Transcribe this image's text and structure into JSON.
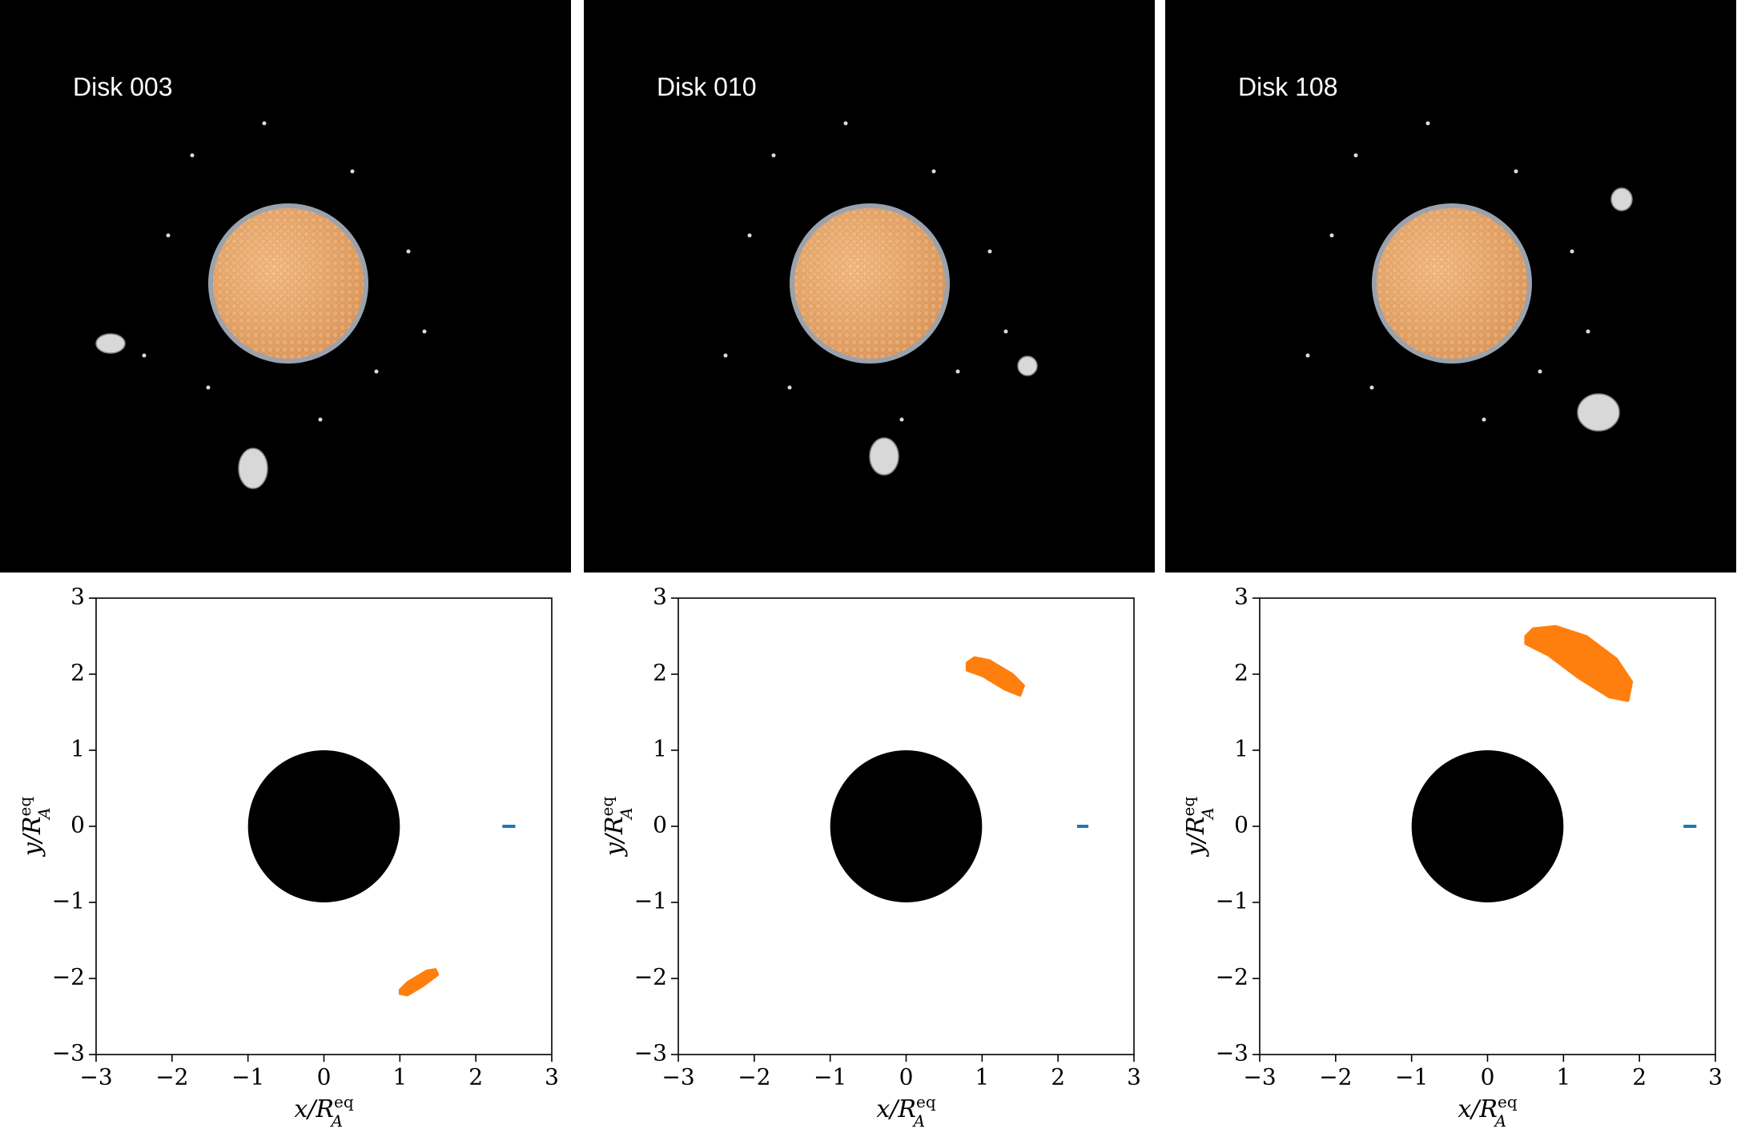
{
  "chart_data": [
    {
      "type": "scatter",
      "title": "Disk 003",
      "xlabel": {
        "base": "x/R",
        "sub": "A",
        "sup": "eq"
      },
      "ylabel": {
        "base": "y/R",
        "sub": "A",
        "sup": "eq"
      },
      "xlim": [
        -3,
        3
      ],
      "ylim": [
        -3,
        3
      ],
      "xticks": [
        {
          "value": -3,
          "label": "−3"
        },
        {
          "value": -2,
          "label": "−2"
        },
        {
          "value": -1,
          "label": "−1"
        },
        0,
        1,
        2,
        3
      ],
      "yticks": [
        {
          "value": -3,
          "label": "−3"
        },
        {
          "value": -2,
          "label": "−2"
        },
        {
          "value": -1,
          "label": "−1"
        },
        0,
        1,
        2,
        3
      ],
      "body": {
        "color": "#000000",
        "x": 0,
        "y": 0,
        "r": 1
      },
      "clump": {
        "color": "#ff7f0e",
        "x": [
          1.0,
          1.1,
          1.3,
          1.5,
          1.47,
          1.35,
          1.1,
          1.0
        ],
        "y": [
          -2.2,
          -2.22,
          -2.1,
          -1.95,
          -1.88,
          -1.9,
          -2.05,
          -2.15
        ]
      },
      "marker": {
        "color": "#1f77b4",
        "x": [
          2.35,
          2.52
        ],
        "y": [
          0,
          0
        ]
      }
    },
    {
      "type": "scatter",
      "title": "Disk 010",
      "xlabel": {
        "base": "x/R",
        "sub": "A",
        "sup": "eq"
      },
      "ylabel": {
        "base": "y/R",
        "sub": "A",
        "sup": "eq"
      },
      "xlim": [
        -3,
        3
      ],
      "ylim": [
        -3,
        3
      ],
      "xticks": [
        {
          "value": -3,
          "label": "−3"
        },
        {
          "value": -2,
          "label": "−2"
        },
        {
          "value": -1,
          "label": "−1"
        },
        0,
        1,
        2,
        3
      ],
      "yticks": [
        {
          "value": -3,
          "label": "−3"
        },
        {
          "value": -2,
          "label": "−2"
        },
        {
          "value": -1,
          "label": "−1"
        },
        0,
        1,
        2,
        3
      ],
      "body": {
        "color": "#000000",
        "x": 0,
        "y": 0,
        "r": 1
      },
      "clump": {
        "color": "#ff7f0e",
        "x": [
          0.8,
          0.9,
          1.1,
          1.4,
          1.55,
          1.5,
          1.3,
          1.0,
          0.8
        ],
        "y": [
          2.15,
          2.22,
          2.18,
          2.0,
          1.85,
          1.72,
          1.8,
          1.98,
          2.05
        ]
      },
      "marker": {
        "color": "#1f77b4",
        "x": [
          2.25,
          2.4
        ],
        "y": [
          0,
          0
        ]
      }
    },
    {
      "type": "scatter",
      "title": "Disk 108",
      "xlabel": {
        "base": "x/R",
        "sub": "A",
        "sup": "eq"
      },
      "ylabel": {
        "base": "y/R",
        "sub": "A",
        "sup": "eq"
      },
      "xlim": [
        -3,
        3
      ],
      "ylim": [
        -3,
        3
      ],
      "xticks": [
        {
          "value": -3,
          "label": "−3"
        },
        {
          "value": -2,
          "label": "−2"
        },
        {
          "value": -1,
          "label": "−1"
        },
        0,
        1,
        2,
        3
      ],
      "yticks": [
        {
          "value": -3,
          "label": "−3"
        },
        {
          "value": -2,
          "label": "−2"
        },
        {
          "value": -1,
          "label": "−1"
        },
        0,
        1,
        2,
        3
      ],
      "body": {
        "color": "#000000",
        "x": 0,
        "y": 0,
        "r": 1
      },
      "clump": {
        "color": "#ff7f0e",
        "x": [
          0.5,
          0.6,
          0.9,
          1.3,
          1.7,
          1.9,
          1.85,
          1.6,
          1.2,
          0.8,
          0.5
        ],
        "y": [
          2.5,
          2.6,
          2.63,
          2.5,
          2.2,
          1.9,
          1.65,
          1.7,
          1.95,
          2.25,
          2.4
        ]
      },
      "marker": {
        "color": "#1f77b4",
        "x": [
          2.58,
          2.75
        ],
        "y": [
          0,
          0
        ]
      }
    }
  ]
}
